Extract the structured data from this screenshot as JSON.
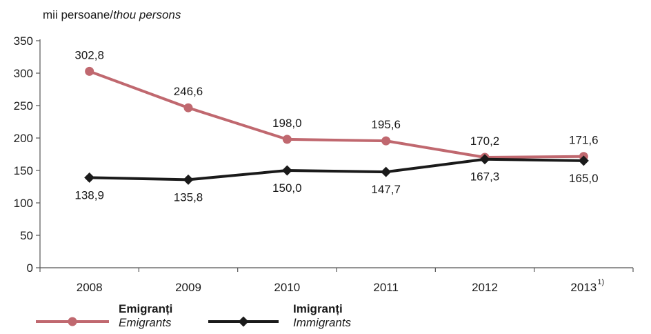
{
  "unit_label": {
    "ro": "mii persoane/",
    "en": "thou persons"
  },
  "chart_data": {
    "type": "line",
    "categories": [
      "2008",
      "2009",
      "2010",
      "2011",
      "2012",
      "2013"
    ],
    "category_notes": [
      "",
      "",
      "",
      "",
      "",
      "1)"
    ],
    "ylim": [
      0,
      350
    ],
    "yticks": [
      "0",
      "50",
      "100",
      "150",
      "200",
      "250",
      "300",
      "350"
    ],
    "grid": false,
    "legend_position": "bottom-left",
    "series": [
      {
        "name": "Emigranți",
        "name_en": "Emigrants",
        "color": "#c0686f",
        "marker": "circle",
        "values": [
          302.8,
          246.6,
          198.0,
          195.6,
          170.2,
          171.6
        ],
        "labels": [
          "302,8",
          "246,6",
          "198,0",
          "195,6",
          "170,2",
          "171,6"
        ],
        "label_position": "above"
      },
      {
        "name": "Imigranți",
        "name_en": "Immigrants",
        "color": "#1a1a1a",
        "marker": "diamond",
        "values": [
          138.9,
          135.8,
          150.0,
          147.7,
          167.3,
          165.0
        ],
        "labels": [
          "138,9",
          "135,8",
          "150,0",
          "147,7",
          "167,3",
          "165,0"
        ],
        "label_position": "below"
      }
    ]
  }
}
